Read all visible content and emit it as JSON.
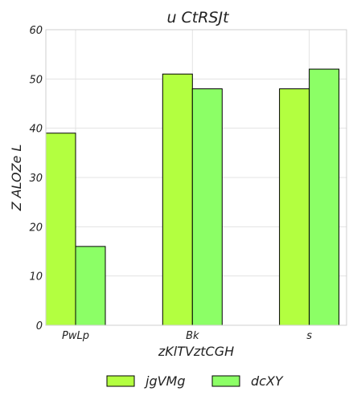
{
  "chart_data": {
    "type": "bar",
    "title": "u  CtRSJt",
    "xlabel": "zKlTVztCGH",
    "ylabel": "Z ALOZe L",
    "categories": [
      "PwLp",
      "Bk",
      "s"
    ],
    "ylim": [
      0,
      60
    ],
    "yticks": [
      0,
      10,
      20,
      30,
      40,
      50,
      60
    ],
    "grid": true,
    "legend_position": "bottom",
    "series": [
      {
        "name": "jgVMg",
        "values": [
          39,
          51,
          48
        ],
        "color": "#b3ff40"
      },
      {
        "name": "dcXY",
        "values": [
          16,
          48,
          52
        ],
        "color": "#8cff66"
      }
    ]
  }
}
